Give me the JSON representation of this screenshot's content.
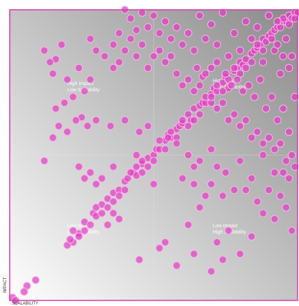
{
  "colors": {
    "plot_bg_light": "#ffffff",
    "plot_bg_dark": "#8a8a8a",
    "frame": "#d63aa8",
    "point_fill": "#e040c0",
    "point_stroke": "#f7b8ea",
    "quad_line": "#e8e8e8"
  },
  "chart_data": {
    "type": "scatter",
    "xlabel": "SCALABILITY",
    "ylabel": "IMPACT",
    "xlim": [
      0,
      100
    ],
    "ylim": [
      0,
      100
    ],
    "grid": false,
    "quadrant_labels": [
      {
        "line1": "High Impact",
        "line2": "Low Scalability"
      },
      {
        "line1": "High Impact",
        "line2": "High Scalability"
      },
      {
        "line1": "Low Impact",
        "line2": "Low Scalability"
      },
      {
        "line1": "Low Impact",
        "line2": "High Scalability"
      }
    ],
    "points": [
      [
        1,
        1
      ],
      [
        2,
        0
      ],
      [
        6,
        5
      ],
      [
        9,
        7
      ],
      [
        5,
        3
      ],
      [
        22,
        20
      ],
      [
        20,
        19
      ],
      [
        21,
        21
      ],
      [
        24,
        23
      ],
      [
        26,
        27
      ],
      [
        29,
        30
      ],
      [
        30,
        29
      ],
      [
        32,
        33
      ],
      [
        34,
        35
      ],
      [
        36,
        37
      ],
      [
        38,
        38
      ],
      [
        40,
        41
      ],
      [
        41,
        42
      ],
      [
        43,
        44
      ],
      [
        44,
        43
      ],
      [
        46,
        47
      ],
      [
        48,
        49
      ],
      [
        50,
        50
      ],
      [
        51,
        52
      ],
      [
        52,
        52
      ],
      [
        54,
        55
      ],
      [
        55,
        57
      ],
      [
        56,
        56
      ],
      [
        58,
        59
      ],
      [
        59,
        60
      ],
      [
        60,
        61
      ],
      [
        62,
        64
      ],
      [
        63,
        62
      ],
      [
        64,
        66
      ],
      [
        66,
        67
      ],
      [
        67,
        68
      ],
      [
        68,
        68
      ],
      [
        70,
        71
      ],
      [
        71,
        73
      ],
      [
        72,
        72
      ],
      [
        74,
        75
      ],
      [
        75,
        77
      ],
      [
        76,
        76
      ],
      [
        78,
        79
      ],
      [
        79,
        80
      ],
      [
        80,
        82
      ],
      [
        81,
        81
      ],
      [
        82,
        83
      ],
      [
        84,
        85
      ],
      [
        85,
        86
      ],
      [
        86,
        87
      ],
      [
        87,
        88
      ],
      [
        88,
        90
      ],
      [
        89,
        89
      ],
      [
        90,
        91
      ],
      [
        91,
        92
      ],
      [
        92,
        93
      ],
      [
        93,
        94
      ],
      [
        94,
        94
      ],
      [
        95,
        96
      ],
      [
        96,
        96
      ],
      [
        97,
        98
      ],
      [
        98,
        97
      ],
      [
        99,
        99
      ],
      [
        100,
        99
      ],
      [
        99,
        97
      ],
      [
        97,
        95
      ],
      [
        95,
        97
      ],
      [
        93,
        96
      ],
      [
        91,
        90
      ],
      [
        88,
        86
      ],
      [
        86,
        88
      ],
      [
        84,
        82
      ],
      [
        82,
        80
      ],
      [
        80,
        78
      ],
      [
        78,
        80
      ],
      [
        76,
        73
      ],
      [
        74,
        72
      ],
      [
        72,
        74
      ],
      [
        70,
        68
      ],
      [
        68,
        70
      ],
      [
        66,
        64
      ],
      [
        64,
        62
      ],
      [
        62,
        60
      ],
      [
        60,
        62
      ],
      [
        58,
        56
      ],
      [
        56,
        58
      ],
      [
        54,
        52
      ],
      [
        52,
        55
      ],
      [
        50,
        48
      ],
      [
        48,
        46
      ],
      [
        46,
        48
      ],
      [
        44,
        46
      ],
      [
        42,
        44
      ],
      [
        40,
        38
      ],
      [
        38,
        36
      ],
      [
        36,
        34
      ],
      [
        34,
        32
      ],
      [
        32,
        30
      ],
      [
        30,
        32
      ],
      [
        28,
        26
      ],
      [
        26,
        24
      ],
      [
        24,
        22
      ],
      [
        22,
        24
      ],
      [
        40,
        100
      ],
      [
        42,
        97
      ],
      [
        44,
        93
      ],
      [
        46,
        99
      ],
      [
        48,
        94
      ],
      [
        50,
        98
      ],
      [
        52,
        92
      ],
      [
        54,
        96
      ],
      [
        56,
        90
      ],
      [
        58,
        94
      ],
      [
        60,
        88
      ],
      [
        62,
        92
      ],
      [
        64,
        86
      ],
      [
        66,
        98
      ],
      [
        68,
        90
      ],
      [
        70,
        95
      ],
      [
        72,
        88
      ],
      [
        74,
        99
      ],
      [
        76,
        84
      ],
      [
        78,
        92
      ],
      [
        80,
        86
      ],
      [
        82,
        96
      ],
      [
        84,
        90
      ],
      [
        86,
        94
      ],
      [
        88,
        82
      ],
      [
        90,
        98
      ],
      [
        92,
        86
      ],
      [
        94,
        78
      ],
      [
        96,
        90
      ],
      [
        98,
        84
      ],
      [
        65,
        80
      ],
      [
        67,
        77
      ],
      [
        70,
        80
      ],
      [
        72,
        82
      ],
      [
        75,
        78
      ],
      [
        77,
        74
      ],
      [
        79,
        76
      ],
      [
        81,
        72
      ],
      [
        83,
        74
      ],
      [
        85,
        70
      ],
      [
        87,
        76
      ],
      [
        89,
        66
      ],
      [
        91,
        70
      ],
      [
        93,
        62
      ],
      [
        95,
        66
      ],
      [
        97,
        58
      ],
      [
        99,
        70
      ],
      [
        97,
        80
      ],
      [
        95,
        84
      ],
      [
        93,
        88
      ],
      [
        18,
        88
      ],
      [
        16,
        83
      ],
      [
        15,
        78
      ],
      [
        14,
        82
      ],
      [
        12,
        86
      ],
      [
        28,
        90
      ],
      [
        30,
        86
      ],
      [
        33,
        84
      ],
      [
        36,
        80
      ],
      [
        38,
        82
      ],
      [
        25,
        63
      ],
      [
        23,
        62
      ],
      [
        27,
        60
      ],
      [
        30,
        62
      ],
      [
        35,
        60
      ],
      [
        40,
        62
      ],
      [
        45,
        58
      ],
      [
        48,
        60
      ],
      [
        55,
        56
      ],
      [
        58,
        54
      ],
      [
        12,
        48
      ],
      [
        24,
        46
      ],
      [
        26,
        42
      ],
      [
        28,
        44
      ],
      [
        30,
        40
      ],
      [
        32,
        42
      ],
      [
        36,
        46
      ],
      [
        44,
        50
      ],
      [
        46,
        44
      ],
      [
        50,
        40
      ],
      [
        62,
        50
      ],
      [
        64,
        46
      ],
      [
        66,
        48
      ],
      [
        70,
        52
      ],
      [
        72,
        46
      ],
      [
        75,
        44
      ],
      [
        80,
        48
      ],
      [
        84,
        42
      ],
      [
        88,
        50
      ],
      [
        92,
        44
      ],
      [
        60,
        42
      ],
      [
        64,
        40
      ],
      [
        68,
        36
      ],
      [
        70,
        40
      ],
      [
        74,
        36
      ],
      [
        78,
        38
      ],
      [
        82,
        38
      ],
      [
        86,
        34
      ],
      [
        90,
        38
      ],
      [
        94,
        36
      ],
      [
        34,
        26
      ],
      [
        36,
        30
      ],
      [
        38,
        28
      ],
      [
        54,
        20
      ],
      [
        62,
        26
      ],
      [
        66,
        32
      ],
      [
        72,
        20
      ],
      [
        76,
        24
      ],
      [
        80,
        16
      ],
      [
        84,
        22
      ],
      [
        88,
        30
      ],
      [
        92,
        28
      ],
      [
        96,
        32
      ],
      [
        98,
        24
      ],
      [
        45,
        14
      ],
      [
        52,
        18
      ],
      [
        58,
        12
      ],
      [
        64,
        16
      ],
      [
        70,
        10
      ],
      [
        74,
        14
      ],
      [
        15,
        56
      ],
      [
        17,
        60
      ],
      [
        20,
        58
      ],
      [
        16,
        66
      ],
      [
        19,
        68
      ],
      [
        22,
        70
      ],
      [
        26,
        72
      ],
      [
        20,
        76
      ],
      [
        24,
        80
      ],
      [
        28,
        76
      ],
      [
        36,
        88
      ],
      [
        38,
        92
      ],
      [
        40,
        86
      ],
      [
        42,
        90
      ],
      [
        44,
        84
      ],
      [
        46,
        88
      ],
      [
        48,
        80
      ],
      [
        50,
        84
      ],
      [
        52,
        86
      ],
      [
        54,
        82
      ],
      [
        56,
        84
      ],
      [
        58,
        78
      ],
      [
        60,
        74
      ],
      [
        62,
        76
      ],
      [
        64,
        72
      ],
      [
        66,
        74
      ],
      [
        68,
        78
      ],
      [
        70,
        70
      ],
      [
        72,
        66
      ],
      [
        74,
        68
      ],
      [
        76,
        62
      ],
      [
        78,
        64
      ],
      [
        80,
        60
      ],
      [
        82,
        62
      ],
      [
        84,
        56
      ],
      [
        86,
        58
      ],
      [
        88,
        54
      ],
      [
        90,
        56
      ],
      [
        92,
        52
      ],
      [
        94,
        54
      ],
      [
        96,
        48
      ],
      [
        98,
        50
      ],
      [
        99,
        46
      ],
      [
        97,
        42
      ],
      [
        95,
        44
      ]
    ]
  }
}
